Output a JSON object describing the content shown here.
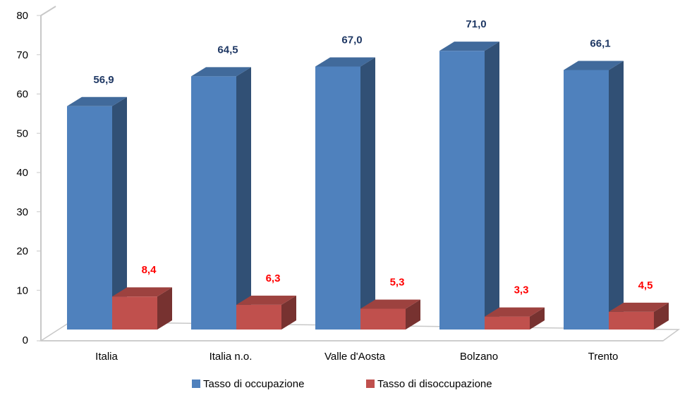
{
  "chart_data": {
    "type": "bar",
    "title": "",
    "xlabel": "",
    "ylabel": "",
    "ylim": [
      0,
      80
    ],
    "yticks": [
      0,
      10,
      20,
      30,
      40,
      50,
      60,
      70,
      80
    ],
    "categories": [
      "Italia",
      "Italia n.o.",
      "Valle d'Aosta",
      "Bolzano",
      "Trento"
    ],
    "series": [
      {
        "name": "Tasso di occupazione",
        "values": [
          56.9,
          64.5,
          67.0,
          71.0,
          66.1
        ],
        "labels": [
          "56,9",
          "64,5",
          "67,0",
          "71,0",
          "66,1"
        ],
        "color": "#4F81BD",
        "label_color": "#1F3864"
      },
      {
        "name": "Tasso di disoccupazione",
        "values": [
          8.4,
          6.3,
          5.3,
          3.3,
          4.5
        ],
        "labels": [
          "8,4",
          "6,3",
          "5,3",
          "3,3",
          "4,5"
        ],
        "color": "#C0504D",
        "label_color": "#FF0000"
      }
    ],
    "grid": false,
    "legend_position": "bottom",
    "style": "3d-columns"
  }
}
